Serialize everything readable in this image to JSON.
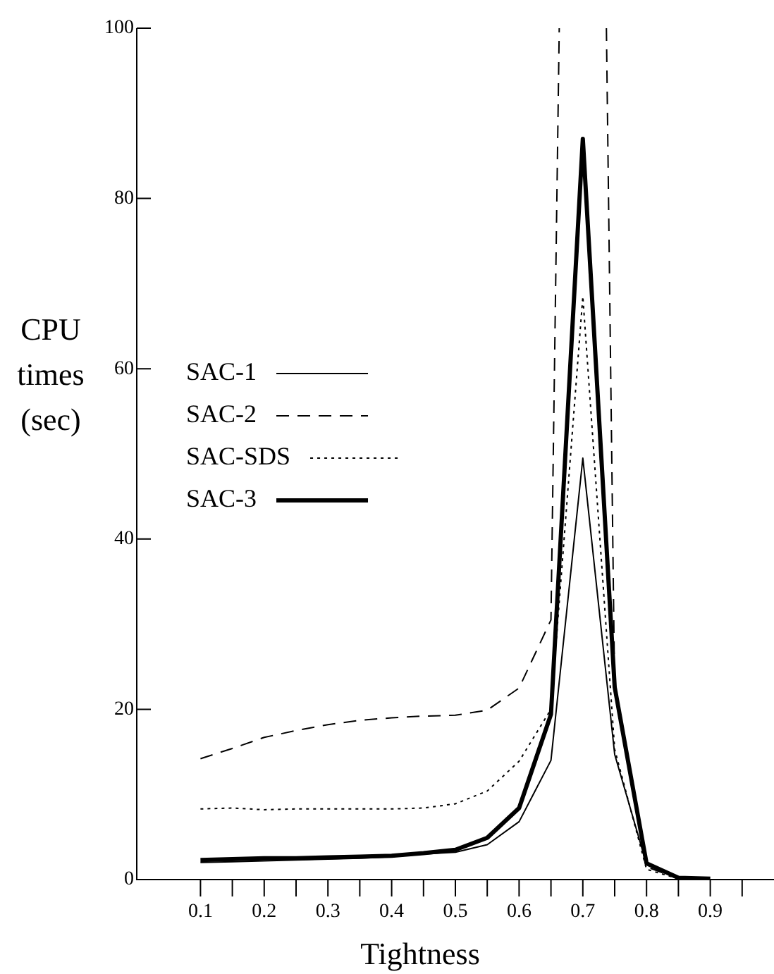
{
  "chart_data": {
    "type": "line",
    "xlabel": "Tightness",
    "ylabel": "CPU times (sec)",
    "x": [
      0.1,
      0.15,
      0.2,
      0.25,
      0.3,
      0.35,
      0.4,
      0.45,
      0.5,
      0.55,
      0.6,
      0.65,
      0.7,
      0.75,
      0.8,
      0.85,
      0.9
    ],
    "series": [
      {
        "name": "SAC-1",
        "color": "#000000",
        "line_style": "solid",
        "values": [
          2.0,
          2.1,
          2.2,
          2.3,
          2.4,
          2.5,
          2.7,
          3.0,
          3.2,
          4.1,
          6.8,
          14.0,
          49.5,
          14.7,
          1.8,
          0.2,
          0
        ]
      },
      {
        "name": "SAC-2",
        "color": "#000000",
        "line_style": "dashed",
        "x": [
          0.1,
          0.15,
          0.2,
          0.25,
          0.3,
          0.35,
          0.4,
          0.45,
          0.5,
          0.55,
          0.6,
          0.65,
          0.663,
          0.7,
          0.737,
          0.75,
          0.8,
          0.85,
          0.9
        ],
        "values": [
          14.2,
          15.4,
          16.7,
          17.5,
          18.2,
          18.7,
          19.0,
          19.2,
          19.3,
          19.9,
          22.5,
          30.5,
          100,
          null,
          100,
          22,
          1.5,
          0.1,
          0
        ]
      },
      {
        "name": "SAC-SDS",
        "color": "#000000",
        "line_style": "dotted",
        "values": [
          8.3,
          8.4,
          8.2,
          8.3,
          8.3,
          8.3,
          8.3,
          8.4,
          8.9,
          10.4,
          13.9,
          20.0,
          68.5,
          15.3,
          1.2,
          0.1,
          0
        ]
      },
      {
        "name": "SAC-3",
        "color": "#000000",
        "line_style": "solid",
        "values": [
          2.3,
          2.4,
          2.5,
          2.5,
          2.6,
          2.7,
          2.8,
          3.1,
          3.5,
          4.9,
          8.4,
          19.4,
          87.0,
          22.6,
          1.9,
          0.2,
          0.1
        ]
      }
    ],
    "xlim": [
      0,
      1
    ],
    "xticks": [
      0.1,
      {
        "value": 0.15,
        "label": null
      },
      0.2,
      {
        "value": 0.25,
        "label": null
      },
      0.3,
      {
        "value": 0.35,
        "label": null
      },
      0.4,
      {
        "value": 0.45,
        "label": null
      },
      0.5,
      {
        "value": 0.55,
        "label": null
      },
      0.6,
      {
        "value": 0.65,
        "label": null
      },
      0.7,
      {
        "value": 0.75,
        "label": null
      },
      0.8,
      {
        "value": 0.85,
        "label": null
      },
      0.9,
      {
        "value": 0.95,
        "label": null
      }
    ],
    "ylim": [
      0,
      100
    ],
    "yticks": [
      0,
      20,
      40,
      60,
      80,
      100
    ],
    "grid": false,
    "legend": "left",
    "marker": "none"
  }
}
